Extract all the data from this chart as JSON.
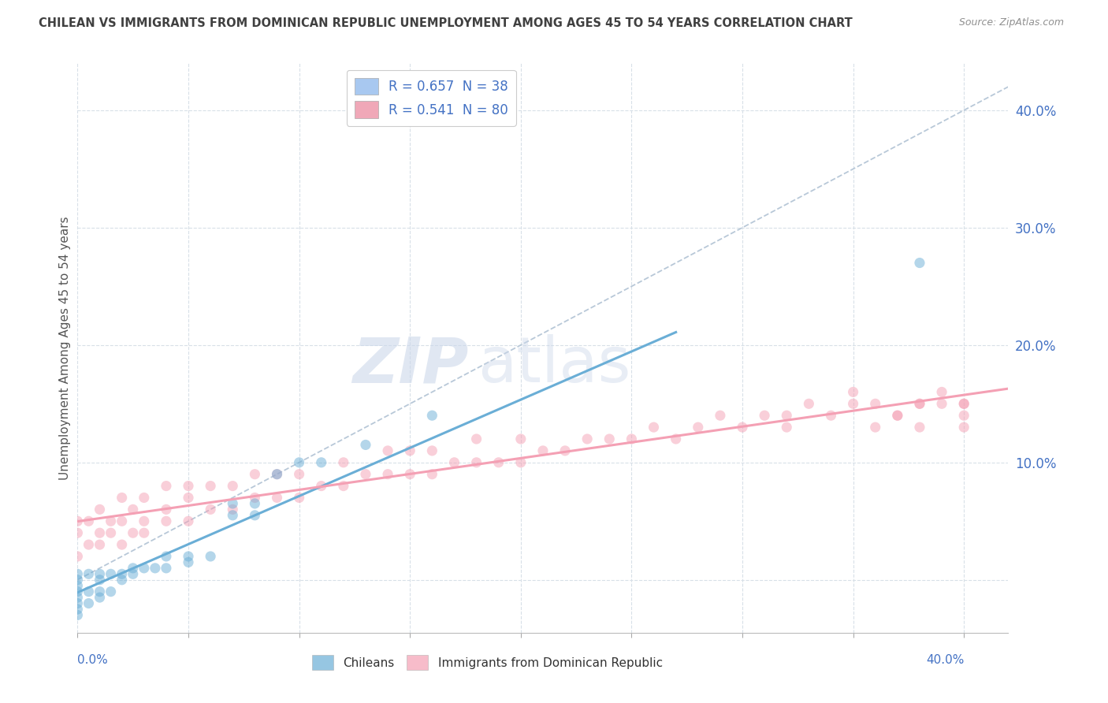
{
  "title": "CHILEAN VS IMMIGRANTS FROM DOMINICAN REPUBLIC UNEMPLOYMENT AMONG AGES 45 TO 54 YEARS CORRELATION CHART",
  "source": "Source: ZipAtlas.com",
  "ylabel": "Unemployment Among Ages 45 to 54 years",
  "y_tick_labels": [
    "",
    "10.0%",
    "20.0%",
    "30.0%",
    "40.0%"
  ],
  "y_tick_vals": [
    0.0,
    0.1,
    0.2,
    0.3,
    0.4
  ],
  "x_range": [
    0.0,
    0.42
  ],
  "y_range": [
    -0.045,
    0.44
  ],
  "legend_entries": [
    {
      "label": "R = 0.657  N = 38",
      "color": "#a8c8f0"
    },
    {
      "label": "R = 0.541  N = 80",
      "color": "#f0a8b8"
    }
  ],
  "chilean_color": "#6aaed6",
  "dominican_color": "#f4a0b4",
  "dashed_line_color": "#b8c8d8",
  "watermark_zip": "ZIP",
  "watermark_atlas": "atlas",
  "grid_color": "#d8e0e8",
  "bg_color": "#ffffff",
  "title_color": "#404040",
  "source_color": "#909090",
  "tick_label_color": "#4472c4",
  "bottom_label_color": "#4472c4",
  "chilean_x": [
    0.0,
    0.0,
    0.0,
    0.0,
    0.0,
    0.0,
    0.0,
    0.0,
    0.005,
    0.005,
    0.005,
    0.01,
    0.01,
    0.01,
    0.01,
    0.015,
    0.015,
    0.02,
    0.02,
    0.025,
    0.025,
    0.03,
    0.035,
    0.04,
    0.04,
    0.05,
    0.05,
    0.06,
    0.07,
    0.07,
    0.08,
    0.08,
    0.09,
    0.1,
    0.11,
    0.13,
    0.16,
    0.38
  ],
  "chilean_y": [
    -0.03,
    -0.025,
    -0.02,
    -0.015,
    -0.01,
    -0.005,
    0.0,
    0.005,
    -0.02,
    -0.01,
    0.005,
    -0.015,
    -0.01,
    0.0,
    0.005,
    -0.01,
    0.005,
    0.0,
    0.005,
    0.005,
    0.01,
    0.01,
    0.01,
    0.01,
    0.02,
    0.015,
    0.02,
    0.02,
    0.055,
    0.065,
    0.055,
    0.065,
    0.09,
    0.1,
    0.1,
    0.115,
    0.14,
    0.27
  ],
  "dominican_x": [
    0.0,
    0.0,
    0.0,
    0.005,
    0.005,
    0.01,
    0.01,
    0.01,
    0.015,
    0.015,
    0.02,
    0.02,
    0.02,
    0.025,
    0.025,
    0.03,
    0.03,
    0.03,
    0.04,
    0.04,
    0.04,
    0.05,
    0.05,
    0.05,
    0.06,
    0.06,
    0.07,
    0.07,
    0.08,
    0.08,
    0.09,
    0.09,
    0.1,
    0.1,
    0.11,
    0.12,
    0.12,
    0.13,
    0.14,
    0.14,
    0.15,
    0.15,
    0.16,
    0.16,
    0.17,
    0.18,
    0.18,
    0.19,
    0.2,
    0.2,
    0.21,
    0.22,
    0.23,
    0.24,
    0.25,
    0.26,
    0.27,
    0.28,
    0.29,
    0.3,
    0.31,
    0.32,
    0.33,
    0.34,
    0.35,
    0.36,
    0.36,
    0.37,
    0.38,
    0.38,
    0.39,
    0.4,
    0.4,
    0.32,
    0.35,
    0.37,
    0.38,
    0.39,
    0.4,
    0.4
  ],
  "dominican_y": [
    0.02,
    0.04,
    0.05,
    0.03,
    0.05,
    0.03,
    0.04,
    0.06,
    0.04,
    0.05,
    0.03,
    0.05,
    0.07,
    0.04,
    0.06,
    0.04,
    0.05,
    0.07,
    0.05,
    0.06,
    0.08,
    0.05,
    0.07,
    0.08,
    0.06,
    0.08,
    0.06,
    0.08,
    0.07,
    0.09,
    0.07,
    0.09,
    0.07,
    0.09,
    0.08,
    0.08,
    0.1,
    0.09,
    0.09,
    0.11,
    0.09,
    0.11,
    0.09,
    0.11,
    0.1,
    0.1,
    0.12,
    0.1,
    0.1,
    0.12,
    0.11,
    0.11,
    0.12,
    0.12,
    0.12,
    0.13,
    0.12,
    0.13,
    0.14,
    0.13,
    0.14,
    0.13,
    0.15,
    0.14,
    0.15,
    0.13,
    0.15,
    0.14,
    0.13,
    0.15,
    0.15,
    0.13,
    0.15,
    0.14,
    0.16,
    0.14,
    0.15,
    0.16,
    0.14,
    0.15
  ]
}
